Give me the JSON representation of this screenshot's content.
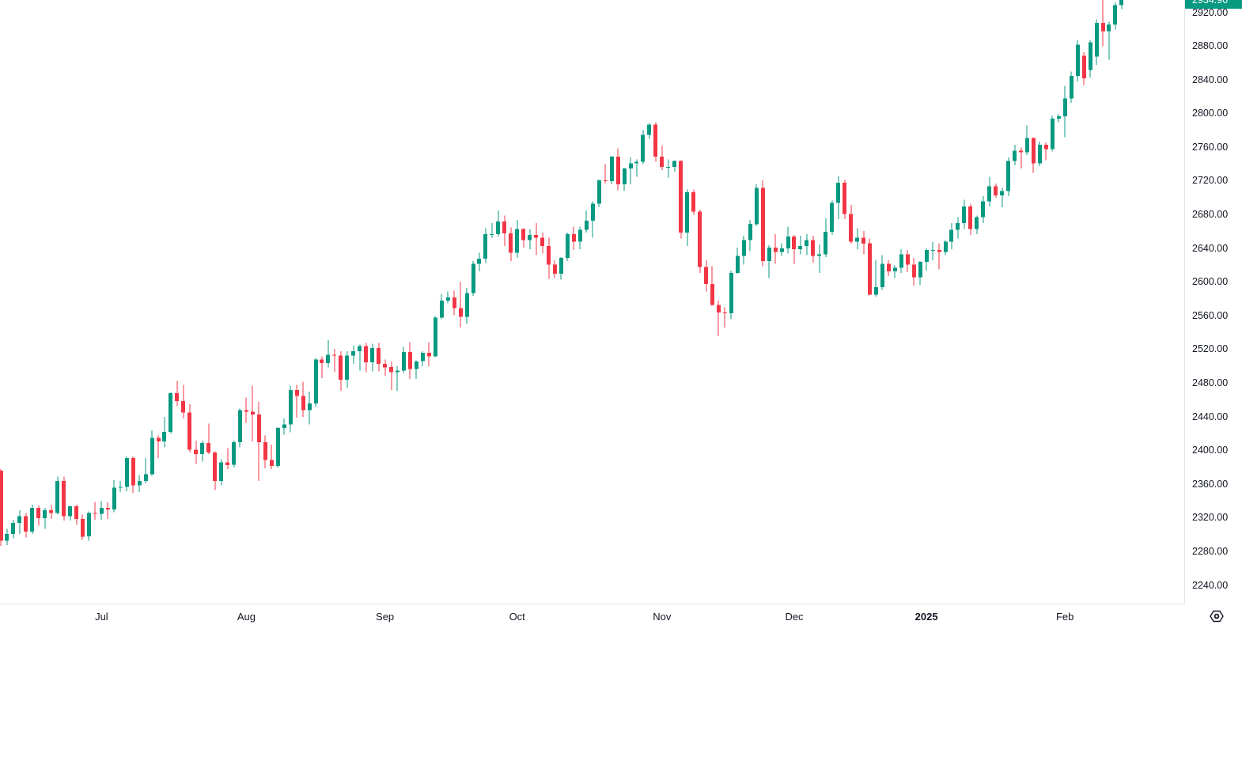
{
  "colors": {
    "background": "#ffffff",
    "up": "#089981",
    "down": "#f23645",
    "axis_text": "#131722",
    "separator": "#e0e3eb",
    "last_price_bg": "#089981",
    "last_price_text": "#ffffff"
  },
  "chart_data": {
    "type": "candlestick",
    "last_price": "2934.90",
    "price_axis": {
      "labels": [
        "2920.00",
        "2880.00",
        "2840.00",
        "2800.00",
        "2760.00",
        "2720.00",
        "2680.00",
        "2640.00",
        "2600.00",
        "2560.00",
        "2520.00",
        "2480.00",
        "2440.00",
        "2400.00",
        "2360.00",
        "2320.00",
        "2280.00",
        "2240.00"
      ],
      "step": 40,
      "ylim": [
        2233,
        2936
      ]
    },
    "time_axis": {
      "ticks": [
        {
          "label": "Jul",
          "index": 16,
          "bold": false
        },
        {
          "label": "Aug",
          "index": 39,
          "bold": false
        },
        {
          "label": "Sep",
          "index": 61,
          "bold": false
        },
        {
          "label": "Oct",
          "index": 82,
          "bold": false
        },
        {
          "label": "Nov",
          "index": 105,
          "bold": false
        },
        {
          "label": "Dec",
          "index": 126,
          "bold": false
        },
        {
          "label": "2025",
          "index": 147,
          "bold": true
        },
        {
          "label": "Feb",
          "index": 169,
          "bold": false
        }
      ]
    },
    "candles": [
      [
        "2024-06-07",
        2376,
        2378,
        2287,
        2293
      ],
      [
        "2024-06-10",
        2293,
        2307,
        2288,
        2301
      ],
      [
        "2024-06-11",
        2301,
        2318,
        2296,
        2314
      ],
      [
        "2024-06-12",
        2314,
        2329,
        2301,
        2322
      ],
      [
        "2024-06-13",
        2322,
        2326,
        2297,
        2304
      ],
      [
        "2024-06-14",
        2304,
        2336,
        2301,
        2332
      ],
      [
        "2024-06-17",
        2332,
        2335,
        2311,
        2320
      ],
      [
        "2024-06-18",
        2320,
        2332,
        2307,
        2329
      ],
      [
        "2024-06-19",
        2329,
        2336,
        2319,
        2326
      ],
      [
        "2024-06-20",
        2326,
        2369,
        2324,
        2364
      ],
      [
        "2024-06-21",
        2364,
        2369,
        2317,
        2322
      ],
      [
        "2024-06-24",
        2322,
        2335,
        2317,
        2334
      ],
      [
        "2024-06-25",
        2334,
        2336,
        2312,
        2319
      ],
      [
        "2024-06-26",
        2319,
        2324,
        2294,
        2298
      ],
      [
        "2024-06-27",
        2298,
        2328,
        2293,
        2326
      ],
      [
        "2024-06-28",
        2326,
        2339,
        2318,
        2325
      ],
      [
        "2024-07-01",
        2325,
        2340,
        2318,
        2332
      ],
      [
        "2024-07-02",
        2332,
        2339,
        2319,
        2330
      ],
      [
        "2024-07-03",
        2330,
        2365,
        2327,
        2356
      ],
      [
        "2024-07-04",
        2356,
        2364,
        2351,
        2357
      ],
      [
        "2024-07-05",
        2357,
        2393,
        2352,
        2391
      ],
      [
        "2024-07-08",
        2391,
        2393,
        2350,
        2359
      ],
      [
        "2024-07-09",
        2359,
        2371,
        2351,
        2364
      ],
      [
        "2024-07-10",
        2364,
        2391,
        2361,
        2372
      ],
      [
        "2024-07-11",
        2372,
        2424,
        2370,
        2415
      ],
      [
        "2024-07-12",
        2415,
        2418,
        2391,
        2411
      ],
      [
        "2024-07-15",
        2411,
        2440,
        2404,
        2422
      ],
      [
        "2024-07-16",
        2422,
        2469,
        2420,
        2468
      ],
      [
        "2024-07-17",
        2468,
        2483,
        2453,
        2459
      ],
      [
        "2024-07-18",
        2459,
        2478,
        2438,
        2445
      ],
      [
        "2024-07-19",
        2445,
        2455,
        2398,
        2401
      ],
      [
        "2024-07-22",
        2401,
        2412,
        2384,
        2396
      ],
      [
        "2024-07-23",
        2396,
        2412,
        2387,
        2409
      ],
      [
        "2024-07-24",
        2409,
        2432,
        2396,
        2398
      ],
      [
        "2024-07-25",
        2398,
        2399,
        2353,
        2364
      ],
      [
        "2024-07-26",
        2364,
        2390,
        2359,
        2386
      ],
      [
        "2024-07-29",
        2386,
        2403,
        2378,
        2383
      ],
      [
        "2024-07-30",
        2383,
        2412,
        2380,
        2410
      ],
      [
        "2024-07-31",
        2410,
        2450,
        2404,
        2448
      ],
      [
        "2024-08-01",
        2448,
        2463,
        2433,
        2446
      ],
      [
        "2024-08-02",
        2446,
        2477,
        2411,
        2443
      ],
      [
        "2024-08-05",
        2443,
        2458,
        2364,
        2410
      ],
      [
        "2024-08-06",
        2410,
        2418,
        2379,
        2389
      ],
      [
        "2024-08-07",
        2389,
        2407,
        2378,
        2382
      ],
      [
        "2024-08-08",
        2382,
        2428,
        2380,
        2427
      ],
      [
        "2024-08-09",
        2427,
        2438,
        2419,
        2431
      ],
      [
        "2024-08-12",
        2431,
        2477,
        2422,
        2472
      ],
      [
        "2024-08-13",
        2472,
        2478,
        2439,
        2465
      ],
      [
        "2024-08-14",
        2465,
        2482,
        2440,
        2448
      ],
      [
        "2024-08-15",
        2448,
        2470,
        2431,
        2456
      ],
      [
        "2024-08-16",
        2456,
        2510,
        2452,
        2508
      ],
      [
        "2024-08-19",
        2508,
        2512,
        2486,
        2504
      ],
      [
        "2024-08-20",
        2504,
        2531,
        2499,
        2514
      ],
      [
        "2024-08-21",
        2514,
        2521,
        2493,
        2513
      ],
      [
        "2024-08-22",
        2513,
        2518,
        2471,
        2484
      ],
      [
        "2024-08-23",
        2484,
        2518,
        2475,
        2513
      ],
      [
        "2024-08-26",
        2513,
        2525,
        2503,
        2518
      ],
      [
        "2024-08-27",
        2518,
        2526,
        2495,
        2524
      ],
      [
        "2024-08-28",
        2524,
        2528,
        2493,
        2505
      ],
      [
        "2024-08-29",
        2505,
        2527,
        2494,
        2522
      ],
      [
        "2024-08-30",
        2522,
        2528,
        2494,
        2503
      ],
      [
        "2024-09-02",
        2503,
        2508,
        2489,
        2499
      ],
      [
        "2024-09-03",
        2499,
        2506,
        2472,
        2493
      ],
      [
        "2024-09-04",
        2493,
        2500,
        2471,
        2495
      ],
      [
        "2024-09-05",
        2495,
        2523,
        2492,
        2517
      ],
      [
        "2024-09-06",
        2517,
        2529,
        2485,
        2497
      ],
      [
        "2024-09-09",
        2497,
        2507,
        2485,
        2506
      ],
      [
        "2024-09-10",
        2506,
        2518,
        2500,
        2516
      ],
      [
        "2024-09-11",
        2516,
        2529,
        2500,
        2512
      ],
      [
        "2024-09-12",
        2512,
        2560,
        2511,
        2558
      ],
      [
        "2024-09-13",
        2558,
        2586,
        2556,
        2578
      ],
      [
        "2024-09-16",
        2578,
        2589,
        2575,
        2582
      ],
      [
        "2024-09-17",
        2582,
        2590,
        2561,
        2569
      ],
      [
        "2024-09-18",
        2569,
        2600,
        2546,
        2559
      ],
      [
        "2024-09-19",
        2559,
        2593,
        2551,
        2587
      ],
      [
        "2024-09-20",
        2587,
        2625,
        2584,
        2622
      ],
      [
        "2024-09-23",
        2622,
        2635,
        2613,
        2628
      ],
      [
        "2024-09-24",
        2628,
        2664,
        2623,
        2657
      ],
      [
        "2024-09-25",
        2657,
        2670,
        2653,
        2657
      ],
      [
        "2024-09-26",
        2657,
        2685,
        2654,
        2672
      ],
      [
        "2024-09-27",
        2672,
        2679,
        2643,
        2658
      ],
      [
        "2024-09-30",
        2658,
        2665,
        2625,
        2635
      ],
      [
        "2024-10-01",
        2635,
        2674,
        2629,
        2663
      ],
      [
        "2024-10-02",
        2663,
        2664,
        2641,
        2650
      ],
      [
        "2024-10-03",
        2650,
        2663,
        2639,
        2656
      ],
      [
        "2024-10-04",
        2656,
        2670,
        2632,
        2653
      ],
      [
        "2024-10-07",
        2653,
        2659,
        2634,
        2643
      ],
      [
        "2024-10-08",
        2643,
        2653,
        2604,
        2621
      ],
      [
        "2024-10-09",
        2621,
        2626,
        2605,
        2610
      ],
      [
        "2024-10-10",
        2610,
        2630,
        2603,
        2629
      ],
      [
        "2024-10-11",
        2629,
        2659,
        2625,
        2657
      ],
      [
        "2024-10-14",
        2657,
        2666,
        2638,
        2648
      ],
      [
        "2024-10-15",
        2648,
        2666,
        2639,
        2662
      ],
      [
        "2024-10-16",
        2662,
        2685,
        2659,
        2673
      ],
      [
        "2024-10-17",
        2673,
        2696,
        2653,
        2693
      ],
      [
        "2024-10-18",
        2693,
        2722,
        2689,
        2721
      ],
      [
        "2024-10-21",
        2721,
        2740,
        2717,
        2720
      ],
      [
        "2024-10-22",
        2720,
        2750,
        2716,
        2749
      ],
      [
        "2024-10-23",
        2749,
        2759,
        2709,
        2716
      ],
      [
        "2024-10-24",
        2716,
        2736,
        2708,
        2735
      ],
      [
        "2024-10-25",
        2735,
        2748,
        2716,
        2741
      ],
      [
        "2024-10-28",
        2741,
        2746,
        2725,
        2743
      ],
      [
        "2024-10-29",
        2743,
        2781,
        2740,
        2775
      ],
      [
        "2024-10-30",
        2775,
        2789,
        2770,
        2787
      ],
      [
        "2024-10-31",
        2787,
        2790,
        2743,
        2749
      ],
      [
        "2024-11-01",
        2749,
        2762,
        2733,
        2737
      ],
      [
        "2024-11-04",
        2737,
        2746,
        2724,
        2737
      ],
      [
        "2024-11-05",
        2737,
        2745,
        2731,
        2744
      ],
      [
        "2024-11-06",
        2744,
        2745,
        2652,
        2659
      ],
      [
        "2024-11-07",
        2659,
        2710,
        2643,
        2707
      ],
      [
        "2024-11-08",
        2707,
        2710,
        2680,
        2684
      ],
      [
        "2024-11-11",
        2684,
        2686,
        2611,
        2618
      ],
      [
        "2024-11-12",
        2618,
        2626,
        2589,
        2598
      ],
      [
        "2024-11-13",
        2598,
        2619,
        2572,
        2573
      ],
      [
        "2024-11-14",
        2573,
        2578,
        2536,
        2564
      ],
      [
        "2024-11-15",
        2564,
        2570,
        2546,
        2563
      ],
      [
        "2024-11-18",
        2563,
        2614,
        2556,
        2611
      ],
      [
        "2024-11-19",
        2611,
        2641,
        2610,
        2631
      ],
      [
        "2024-11-20",
        2631,
        2655,
        2621,
        2650
      ],
      [
        "2024-11-21",
        2650,
        2674,
        2637,
        2669
      ],
      [
        "2024-11-22",
        2669,
        2716,
        2667,
        2712
      ],
      [
        "2024-11-25",
        2712,
        2721,
        2619,
        2625
      ],
      [
        "2024-11-26",
        2625,
        2644,
        2605,
        2641
      ],
      [
        "2024-11-27",
        2641,
        2657,
        2622,
        2636
      ],
      [
        "2024-11-28",
        2636,
        2646,
        2631,
        2640
      ],
      [
        "2024-11-29",
        2640,
        2666,
        2634,
        2654
      ],
      [
        "2024-12-02",
        2654,
        2656,
        2622,
        2639
      ],
      [
        "2024-12-03",
        2639,
        2655,
        2633,
        2643
      ],
      [
        "2024-12-04",
        2643,
        2657,
        2632,
        2650
      ],
      [
        "2024-12-05",
        2650,
        2655,
        2623,
        2631
      ],
      [
        "2024-12-06",
        2631,
        2645,
        2611,
        2633
      ],
      [
        "2024-12-09",
        2633,
        2676,
        2630,
        2660
      ],
      [
        "2024-12-10",
        2660,
        2697,
        2656,
        2694
      ],
      [
        "2024-12-11",
        2694,
        2726,
        2675,
        2718
      ],
      [
        "2024-12-12",
        2718,
        2722,
        2675,
        2681
      ],
      [
        "2024-12-13",
        2681,
        2692,
        2646,
        2648
      ],
      [
        "2024-12-16",
        2648,
        2664,
        2639,
        2653
      ],
      [
        "2024-12-17",
        2653,
        2661,
        2633,
        2646
      ],
      [
        "2024-12-18",
        2646,
        2652,
        2584,
        2585
      ],
      [
        "2024-12-19",
        2585,
        2626,
        2583,
        2594
      ],
      [
        "2024-12-20",
        2594,
        2632,
        2591,
        2622
      ],
      [
        "2024-12-23",
        2622,
        2626,
        2607,
        2613
      ],
      [
        "2024-12-24",
        2613,
        2620,
        2605,
        2617
      ],
      [
        "2024-12-26",
        2617,
        2639,
        2611,
        2633
      ],
      [
        "2024-12-27",
        2633,
        2638,
        2612,
        2621
      ],
      [
        "2024-12-30",
        2621,
        2629,
        2596,
        2606
      ],
      [
        "2024-12-31",
        2606,
        2625,
        2597,
        2624
      ],
      [
        "2025-01-02",
        2624,
        2640,
        2614,
        2638
      ],
      [
        "2025-01-03",
        2638,
        2648,
        2626,
        2638
      ],
      [
        "2025-01-06",
        2638,
        2646,
        2615,
        2636
      ],
      [
        "2025-01-07",
        2636,
        2650,
        2632,
        2648
      ],
      [
        "2025-01-08",
        2648,
        2670,
        2639,
        2662
      ],
      [
        "2025-01-09",
        2662,
        2677,
        2652,
        2670
      ],
      [
        "2025-01-10",
        2670,
        2698,
        2663,
        2690
      ],
      [
        "2025-01-13",
        2690,
        2693,
        2656,
        2663
      ],
      [
        "2025-01-14",
        2663,
        2679,
        2657,
        2677
      ],
      [
        "2025-01-15",
        2677,
        2702,
        2670,
        2696
      ],
      [
        "2025-01-16",
        2696,
        2725,
        2690,
        2714
      ],
      [
        "2025-01-17",
        2714,
        2717,
        2700,
        2703
      ],
      [
        "2025-01-20",
        2703,
        2712,
        2689,
        2708
      ],
      [
        "2025-01-21",
        2708,
        2748,
        2702,
        2744
      ],
      [
        "2025-01-22",
        2744,
        2763,
        2739,
        2756
      ],
      [
        "2025-01-23",
        2756,
        2760,
        2735,
        2754
      ],
      [
        "2025-01-24",
        2754,
        2786,
        2751,
        2771
      ],
      [
        "2025-01-27",
        2771,
        2772,
        2730,
        2741
      ],
      [
        "2025-01-28",
        2741,
        2767,
        2738,
        2763
      ],
      [
        "2025-01-29",
        2763,
        2766,
        2745,
        2758
      ],
      [
        "2025-01-30",
        2758,
        2798,
        2755,
        2794
      ],
      [
        "2025-01-31",
        2794,
        2800,
        2790,
        2797
      ],
      [
        "2025-02-03",
        2797,
        2833,
        2772,
        2818
      ],
      [
        "2025-02-04",
        2818,
        2850,
        2813,
        2845
      ],
      [
        "2025-02-05",
        2845,
        2887,
        2838,
        2882
      ],
      [
        "2025-02-06",
        2869,
        2873,
        2834,
        2842
      ],
      [
        "2025-02-07",
        2852,
        2887,
        2843,
        2885
      ],
      [
        "2025-02-10",
        2868,
        2912,
        2858,
        2908
      ],
      [
        "2025-02-11",
        2908,
        2936,
        2880,
        2898
      ],
      [
        "2025-02-12",
        2898,
        2909,
        2864,
        2906
      ],
      [
        "2025-02-13",
        2906,
        2932,
        2900,
        2929
      ],
      [
        "2025-02-14",
        2929,
        2937,
        2924,
        2934.9
      ]
    ]
  }
}
